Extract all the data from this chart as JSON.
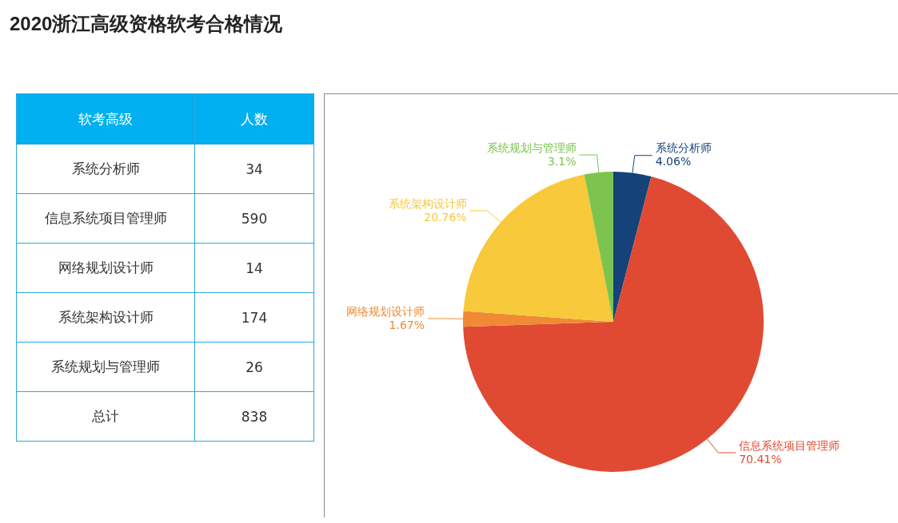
{
  "chart_data": [
    {
      "type": "other",
      "title": "2020浙江高级资格软考合格情况",
      "categories": [
        "系统分析师",
        "信息系统项目管理师",
        "网络规划设计师",
        "系统架构设计师",
        "系统规划与管理师"
      ],
      "values": [
        34,
        590,
        14,
        174,
        26
      ],
      "data_labels": true,
      "totals": [
        "838"
      ],
      "annotations": [
        "软考高级",
        "人数",
        "总计"
      ]
    },
    {
      "type": "pie",
      "categories": [
        "系统分析师",
        "信息系统项目管理师",
        "网络规划设计师",
        "系统架构设计师",
        "系统规划与管理师"
      ],
      "values": [
        4.06,
        70.41,
        1.67,
        20.76,
        3.1
      ],
      "colors": [
        "#16427a",
        "#e04a32",
        "#f08a34",
        "#f8c93a",
        "#7cc44e"
      ],
      "value_labels": [
        "4.06%",
        "70.41%",
        "1.67%",
        "20.76%",
        "3.1%"
      ],
      "legend": false
    }
  ]
}
